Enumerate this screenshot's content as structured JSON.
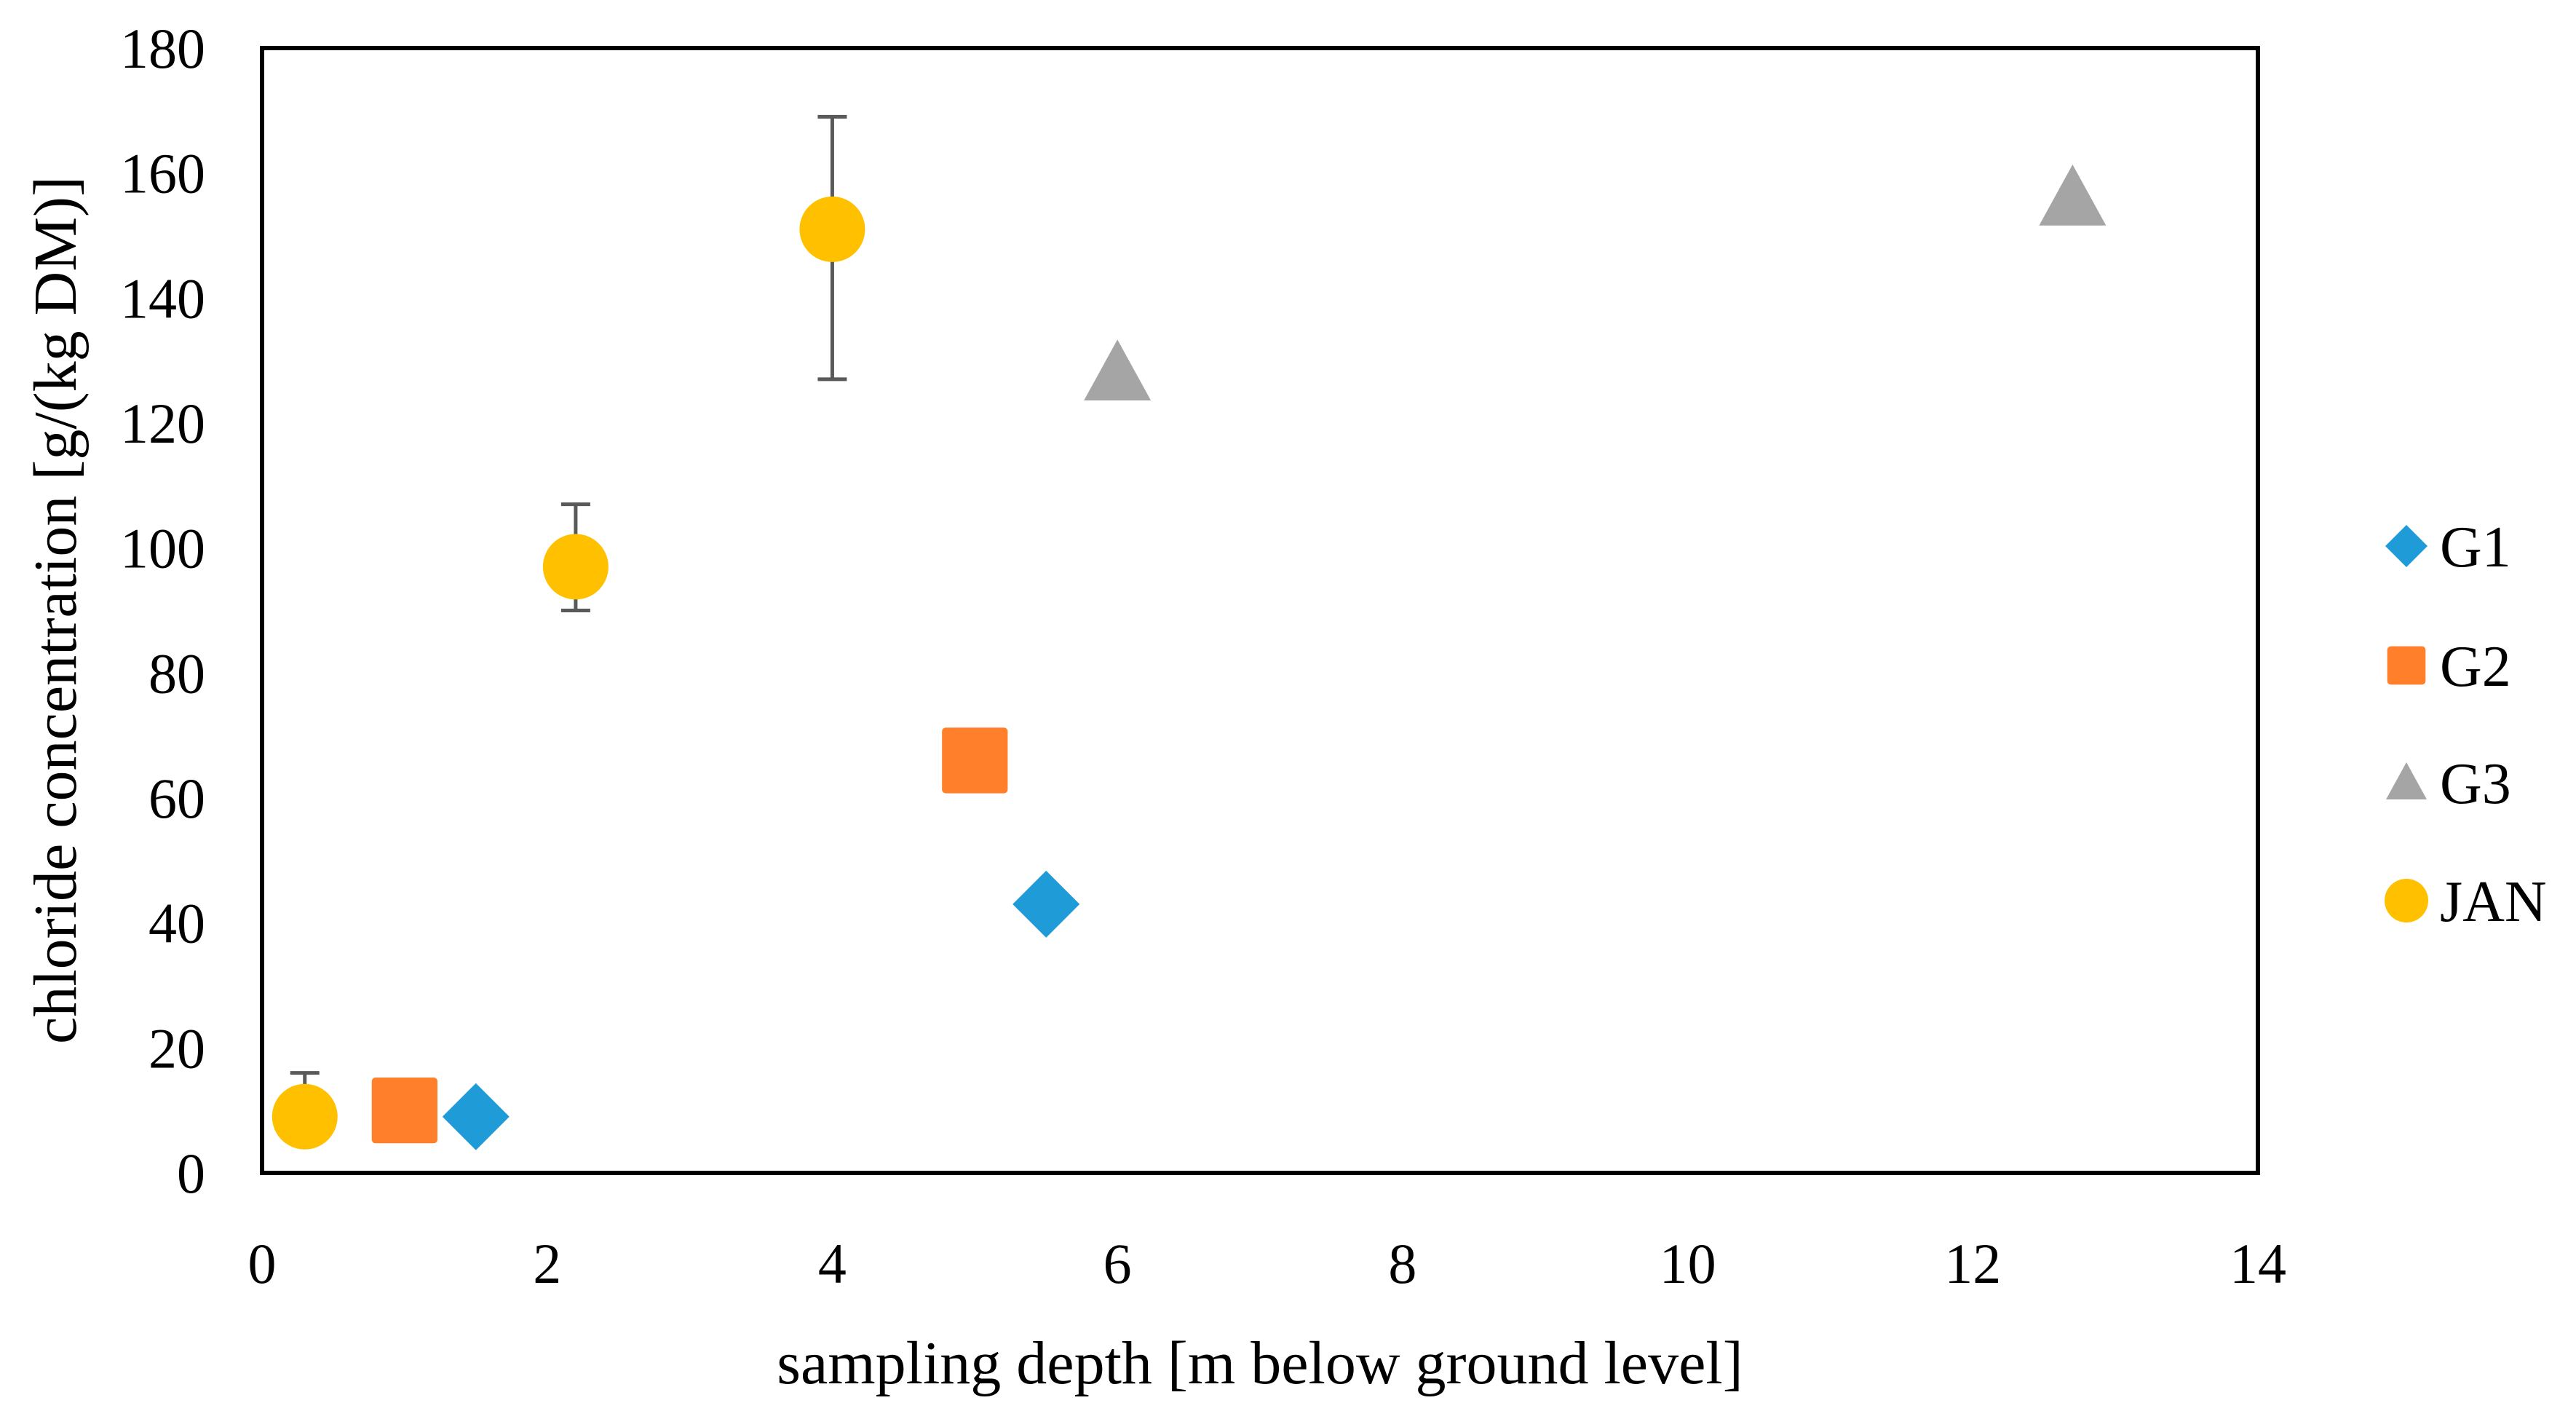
{
  "chart_data": {
    "type": "scatter",
    "title": "",
    "xlabel": "sampling depth [m below ground level]",
    "ylabel": "chloride concentration [g/(kg DM)]",
    "xlim": [
      0,
      14
    ],
    "ylim": [
      0,
      180
    ],
    "xticks": [
      0,
      2,
      4,
      6,
      8,
      10,
      12,
      14
    ],
    "yticks": [
      0,
      20,
      40,
      60,
      80,
      100,
      120,
      140,
      160,
      180
    ],
    "grid": false,
    "legend_position": "right",
    "series": [
      {
        "name": "G1",
        "marker": "diamond",
        "color": "#1f9bd7",
        "points": [
          {
            "x": 1.5,
            "y": 9
          },
          {
            "x": 5.5,
            "y": 43
          }
        ]
      },
      {
        "name": "G2",
        "marker": "square",
        "color": "#ff7f2a",
        "points": [
          {
            "x": 1.0,
            "y": 10
          },
          {
            "x": 5.0,
            "y": 66
          }
        ]
      },
      {
        "name": "G3",
        "marker": "triangle",
        "color": "#a5a5a5",
        "points": [
          {
            "x": 6.0,
            "y": 128
          },
          {
            "x": 12.7,
            "y": 156
          }
        ]
      },
      {
        "name": "JAN",
        "marker": "circle",
        "color": "#ffc000",
        "points": [
          {
            "x": 0.3,
            "y": 9,
            "err_low": 0,
            "err_high": 7
          },
          {
            "x": 2.2,
            "y": 97,
            "err_low": 7,
            "err_high": 10
          },
          {
            "x": 4.0,
            "y": 151,
            "err_low": 24,
            "err_high": 18
          }
        ]
      }
    ]
  }
}
